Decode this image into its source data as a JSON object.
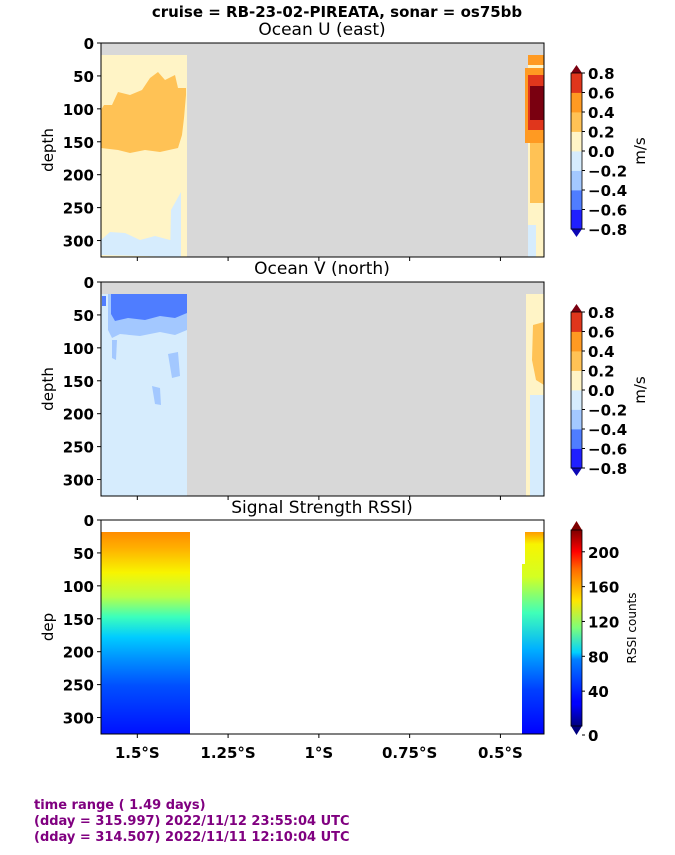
{
  "suptitle": "cruise = RB-23-02-PIREATA,  sonar = os75bb",
  "chart_data": [
    {
      "type": "heatmap",
      "title": "Ocean U (east)",
      "ylabel": "depth",
      "ylim": [
        325,
        0
      ],
      "yticks": [
        "0",
        "50",
        "100",
        "150",
        "200",
        "250",
        "300"
      ],
      "xlim": [
        1.6,
        0.38
      ],
      "xticks": [],
      "colorbar": {
        "label": "m/s",
        "ticks": [
          "0.8",
          "0.6",
          "0.4",
          "0.2",
          "0.0",
          "−0.2",
          "−0.4",
          "−0.6",
          "−0.8"
        ],
        "levels": [
          -0.8,
          -0.6,
          -0.4,
          -0.2,
          0.0,
          0.2,
          0.4,
          0.6,
          0.8
        ],
        "colors": [
          "#2020ff",
          "#4f7dff",
          "#a3c8ff",
          "#d6ecfd",
          "#fff4c6",
          "#ffc255",
          "#ff9a22",
          "#e0361c"
        ],
        "extend_colors": [
          "#0d07b5",
          "#7a0010"
        ]
      },
      "no_data_color": "#d8d8d8",
      "data_columns": [
        {
          "lon_range": [
            1.6,
            1.37
          ],
          "depth_range": [
            18,
            325
          ],
          "summary": "0.0 to 0.2 near surface; 0.2 to 0.4 between ~70 and ~150 m; 0.0 to 0.2 below; 0.0 to −0.2 near 300 m"
        },
        {
          "lon_range": [
            0.43,
            0.38
          ],
          "depth_range": [
            18,
            325
          ],
          "summary": "up to >0.8 between ~60 and ~130 m; 0.2 to 0.4 from ~130 to ~210 m"
        }
      ]
    },
    {
      "type": "heatmap",
      "title": "Ocean V (north)",
      "ylabel": "depth",
      "ylim": [
        325,
        0
      ],
      "yticks": [
        "0",
        "50",
        "100",
        "150",
        "200",
        "250",
        "300"
      ],
      "xlim": [
        1.6,
        0.38
      ],
      "xticks": [],
      "colorbar": {
        "label": "m/s",
        "ticks": [
          "0.8",
          "0.6",
          "0.4",
          "0.2",
          "0.0",
          "−0.2",
          "−0.4",
          "−0.6",
          "−0.8"
        ],
        "levels": [
          -0.8,
          -0.6,
          -0.4,
          -0.2,
          0.0,
          0.2,
          0.4,
          0.6,
          0.8
        ],
        "colors": [
          "#2020ff",
          "#4f7dff",
          "#a3c8ff",
          "#d6ecfd",
          "#fff4c6",
          "#ffc255",
          "#ff9a22",
          "#e0361c"
        ],
        "extend_colors": [
          "#0d07b5",
          "#7a0010"
        ]
      },
      "no_data_color": "#d8d8d8",
      "data_columns": [
        {
          "lon_range": [
            1.6,
            1.37
          ],
          "depth_range": [
            18,
            325
          ],
          "summary": "−0.6 to −0.4 from surface to ~55 m; −0.4 to −0.2 to ~75 m; 0.0 to −0.2 below"
        },
        {
          "lon_range": [
            0.43,
            0.38
          ],
          "depth_range": [
            18,
            325
          ],
          "summary": "0.0 to 0.2, locally 0.2 to 0.4 between ~70 and ~140 m"
        }
      ]
    },
    {
      "type": "heatmap",
      "title": "Signal Strength RSSI)",
      "ylabel": "dep",
      "ylim": [
        325,
        0
      ],
      "yticks": [
        "0",
        "50",
        "100",
        "150",
        "200",
        "250",
        "300"
      ],
      "xlim": [
        1.6,
        0.38
      ],
      "xticks": [
        "1.5°S",
        "1.25°S",
        "1°S",
        "0.75°S",
        "0.5°S"
      ],
      "xtick_values": [
        1.5,
        1.25,
        1.0,
        0.75,
        0.5
      ],
      "colorbar": {
        "label": "RSSI counts",
        "ticks": [
          "200",
          "160",
          "120",
          "80",
          "40",
          "0"
        ],
        "range": [
          0,
          225
        ]
      },
      "data_columns": [
        {
          "lon_range": [
            1.6,
            1.36
          ],
          "depth_range": [
            18,
            325
          ],
          "summary": "about 185 counts at 20 m, ~150 at 75 m, ~100 at 150 m, ~60 at 220 m, ~30 at 325 m"
        },
        {
          "lon_range": [
            0.43,
            0.38
          ],
          "depth_range": [
            18,
            325
          ],
          "summary": "about 170 counts at 20 m, decreasing to ~30 at 325 m"
        }
      ]
    }
  ],
  "footer": {
    "line1": "time range ( 1.49 days)",
    "line2": "(dday = 315.997) 2022/11/12 23:55:04 UTC",
    "line3": "(dday = 314.507) 2022/11/11 12:10:04 UTC"
  }
}
